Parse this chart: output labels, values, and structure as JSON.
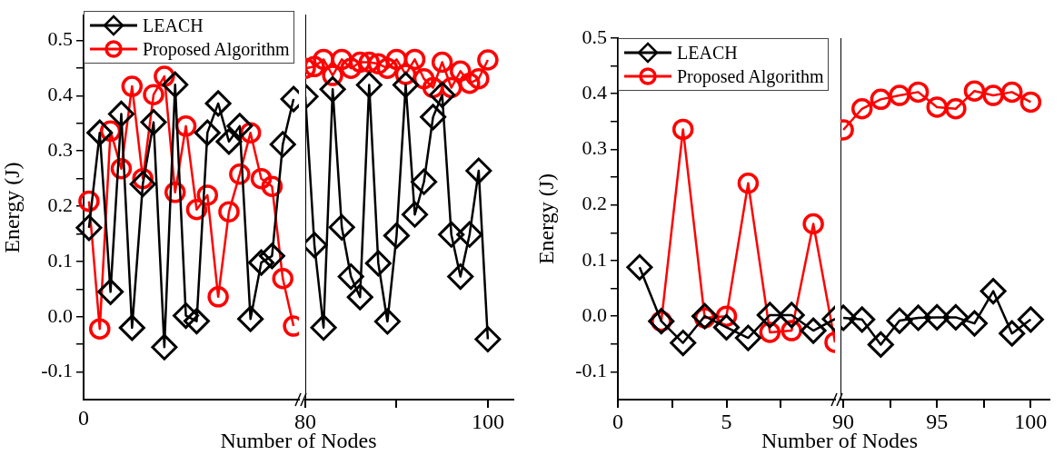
{
  "chart_data": [
    {
      "type": "line",
      "xlabel": "Number of Nodes",
      "ylabel": "Energy (J)",
      "legend": "top left",
      "categories": [
        null,
        null,
        null,
        null,
        null,
        null,
        null,
        null,
        null,
        null,
        null,
        null,
        null,
        null,
        null,
        null,
        null,
        null,
        null,
        null
      ],
      "annotations": [
        "0"
      ],
      "ylim": [
        -0.15,
        0.545
      ],
      "yticks": [
        {
          "value": -0.1,
          "label": "-0.1"
        },
        {
          "value": -0.05,
          "label": null
        },
        {
          "value": 0,
          "label": "0.0"
        },
        {
          "value": 0.05,
          "label": null
        },
        0.1,
        {
          "value": 0.15,
          "label": null
        },
        0.2,
        {
          "value": 0.25,
          "label": null
        },
        0.3,
        {
          "value": 0.35,
          "label": null
        },
        0.4,
        {
          "value": 0.45,
          "label": null
        },
        0.5
      ],
      "series": [
        {
          "name": "LEACH",
          "color": "#000000",
          "marker": "diamond",
          "values": [
            0.161,
            0.333,
            0.045,
            0.367,
            -0.02,
            0.24,
            0.352,
            -0.055,
            0.42,
            0.002,
            -0.008,
            0.333,
            0.386,
            0.317,
            0.345,
            -0.004,
            0.098,
            0.11,
            0.312,
            0.394
          ]
        },
        {
          "name": "Proposed Algorithm",
          "color": "#ff0000",
          "marker": "circle",
          "values": [
            0.209,
            -0.022,
            0.336,
            0.268,
            0.417,
            0.25,
            0.402,
            0.435,
            0.225,
            0.345,
            0.194,
            0.22,
            0.036,
            0.19,
            0.258,
            0.333,
            0.25,
            0.236,
            0.069,
            -0.017
          ]
        }
      ]
    },
    {
      "type": "line",
      "tick_labels": "x",
      "x": [
        80,
        81,
        82,
        83,
        84,
        85,
        86,
        87,
        88,
        89,
        90,
        91,
        92,
        93,
        94,
        95,
        96,
        97,
        98,
        99,
        100
      ],
      "xlim": [
        80,
        102.8
      ],
      "xticks": [
        80,
        {
          "value": 90,
          "label": null
        },
        100
      ],
      "ylim": [
        -0.15,
        0.545
      ],
      "series": [
        {
          "color": "#000000",
          "marker": "diamond",
          "values": [
            0.397,
            0.129,
            -0.02,
            0.41,
            0.161,
            0.072,
            0.035,
            0.418,
            0.096,
            -0.009,
            0.146,
            0.418,
            0.184,
            0.243,
            0.36,
            0.4,
            0.148,
            0.072,
            0.148,
            0.263,
            -0.041
          ]
        },
        {
          "color": "#ff0000",
          "marker": "circle",
          "values": [
            0.448,
            0.451,
            0.464,
            0.435,
            0.464,
            0.448,
            0.459,
            0.459,
            0.456,
            0.448,
            0.464,
            0.437,
            0.464,
            0.429,
            0.413,
            0.459,
            0.413,
            0.443,
            0.421,
            0.429,
            0.463
          ]
        }
      ]
    },
    {
      "type": "line",
      "xlabel": "Number of Nodes",
      "ylabel": "Energy (J)",
      "legend": "top left",
      "x": [
        1,
        2,
        3,
        4,
        5,
        6,
        7,
        8,
        9,
        10
      ],
      "xlim": [
        0,
        10
      ],
      "xticks": [
        0,
        {
          "value": 2.5,
          "label": null
        },
        5,
        {
          "value": 7.5,
          "label": null
        }
      ],
      "ylim": [
        -0.15,
        0.5
      ],
      "yticks": [
        {
          "value": -0.1,
          "label": "-0.1"
        },
        {
          "value": -0.05,
          "label": null
        },
        {
          "value": 0,
          "label": "0.0"
        },
        {
          "value": 0.05,
          "label": null
        },
        0.1,
        {
          "value": 0.15,
          "label": null
        },
        0.2,
        {
          "value": 0.25,
          "label": null
        },
        0.3,
        {
          "value": 0.35,
          "label": null
        },
        0.4,
        {
          "value": 0.45,
          "label": null
        },
        0.5
      ],
      "series": [
        {
          "name": "LEACH",
          "color": "#000000",
          "marker": "diamond",
          "values": [
            0.088,
            -0.009,
            -0.048,
            0.0,
            -0.02,
            -0.039,
            0.002,
            0.002,
            -0.026,
            -0.005
          ]
        },
        {
          "name": "Proposed Algorithm",
          "color": "#ff0000",
          "marker": "circle",
          "values": [
            null,
            -0.009,
            0.336,
            -0.003,
            0.0,
            0.239,
            -0.029,
            -0.026,
            0.166,
            -0.047
          ]
        }
      ]
    },
    {
      "type": "line",
      "tick_labels": "x",
      "x": [
        90,
        91,
        92,
        93,
        94,
        95,
        96,
        97,
        98,
        99,
        100
      ],
      "xlim": [
        89.85,
        101
      ],
      "xticks": [
        90,
        {
          "value": 92.5,
          "label": null
        },
        95,
        {
          "value": 97.5,
          "label": null
        },
        100
      ],
      "ylim": [
        -0.15,
        0.5
      ],
      "series": [
        {
          "color": "#000000",
          "marker": "diamond",
          "values": [
            -0.003,
            -0.006,
            -0.051,
            -0.008,
            -0.003,
            -0.002,
            -0.002,
            -0.013,
            0.045,
            -0.031,
            -0.006
          ]
        },
        {
          "color": "#ff0000",
          "marker": "circle",
          "values": [
            0.335,
            0.373,
            0.39,
            0.397,
            0.403,
            0.376,
            0.373,
            0.405,
            0.397,
            0.403,
            0.385
          ]
        }
      ]
    }
  ]
}
